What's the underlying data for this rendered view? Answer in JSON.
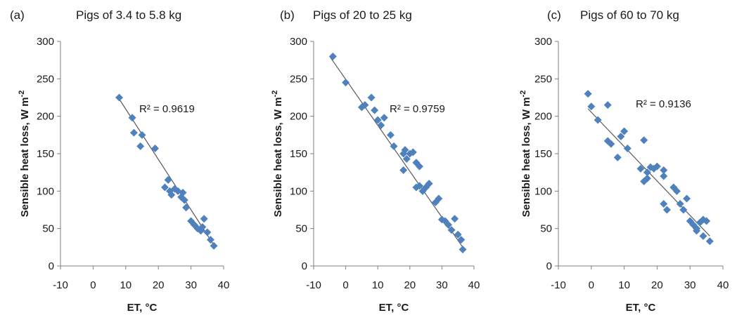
{
  "colors": {
    "marker": "#4f81bd",
    "trendline": "#5a5a5a",
    "axis": "#7f7f7f",
    "text": "#1a1a1a"
  },
  "chart_data": [
    {
      "type": "scatter",
      "panel": "(a)",
      "title": "Pigs of 3.4 to 5.8 kg",
      "xlabel": "ET, °C",
      "ylabel": "Sensible heat loss, W m",
      "ylabel_sup": "-2",
      "xlim": [
        -10,
        40
      ],
      "ylim": [
        0,
        300
      ],
      "xticks": [
        -10,
        0,
        10,
        20,
        30,
        40
      ],
      "yticks": [
        0,
        50,
        100,
        150,
        200,
        250,
        300
      ],
      "r2_label": "R² = 0.9619",
      "trendline": {
        "x": [
          8,
          37
        ],
        "y": [
          223,
          28
        ]
      },
      "points": [
        [
          8,
          225
        ],
        [
          12,
          198
        ],
        [
          12.5,
          178
        ],
        [
          15,
          175
        ],
        [
          14.5,
          160
        ],
        [
          19,
          157
        ],
        [
          22,
          105
        ],
        [
          23,
          115
        ],
        [
          23.5,
          100
        ],
        [
          24,
          95
        ],
        [
          25,
          103
        ],
        [
          26,
          100
        ],
        [
          27,
          92
        ],
        [
          27.5,
          98
        ],
        [
          28,
          88
        ],
        [
          28.5,
          78
        ],
        [
          30,
          60
        ],
        [
          31,
          55
        ],
        [
          32,
          50
        ],
        [
          33,
          47
        ],
        [
          33.5,
          52
        ],
        [
          34,
          63
        ],
        [
          35,
          45
        ],
        [
          36,
          35
        ],
        [
          37,
          27
        ]
      ]
    },
    {
      "type": "scatter",
      "panel": "(b)",
      "title": "Pigs of 20 to 25 kg",
      "xlabel": "ET, °C",
      "ylabel": "Sensible heat loss, W m",
      "ylabel_sup": "-2",
      "xlim": [
        -10,
        40
      ],
      "ylim": [
        0,
        300
      ],
      "xticks": [
        -10,
        0,
        10,
        20,
        30,
        40
      ],
      "yticks": [
        0,
        50,
        100,
        150,
        200,
        250,
        300
      ],
      "r2_label": "R² = 0.9759",
      "trendline": {
        "x": [
          -5,
          37
        ],
        "y": [
          280,
          22
        ]
      },
      "points": [
        [
          -4,
          280
        ],
        [
          0,
          245
        ],
        [
          5,
          212
        ],
        [
          6,
          215
        ],
        [
          8,
          225
        ],
        [
          9,
          208
        ],
        [
          10,
          195
        ],
        [
          12,
          198
        ],
        [
          11,
          188
        ],
        [
          14,
          175
        ],
        [
          15,
          160
        ],
        [
          18,
          150
        ],
        [
          18.5,
          155
        ],
        [
          18,
          128
        ],
        [
          19,
          143
        ],
        [
          20,
          150
        ],
        [
          21,
          152
        ],
        [
          22,
          138
        ],
        [
          22,
          105
        ],
        [
          23,
          133
        ],
        [
          23,
          107
        ],
        [
          24,
          100
        ],
        [
          25,
          105
        ],
        [
          26,
          110
        ],
        [
          28,
          85
        ],
        [
          29,
          90
        ],
        [
          30,
          62
        ],
        [
          31,
          60
        ],
        [
          32,
          55
        ],
        [
          33,
          48
        ],
        [
          34,
          63
        ],
        [
          35,
          42
        ],
        [
          36,
          35
        ],
        [
          36.5,
          22
        ]
      ]
    },
    {
      "type": "scatter",
      "panel": "(c)",
      "title": "Pigs of 60 to 70 kg",
      "xlabel": "ET, °C",
      "ylabel": "Sensible heat loss, W m",
      "ylabel_sup": "-2",
      "xlim": [
        -10,
        40
      ],
      "ylim": [
        0,
        300
      ],
      "xticks": [
        -10,
        0,
        10,
        20,
        30,
        40
      ],
      "yticks": [
        0,
        50,
        100,
        150,
        200,
        250,
        300
      ],
      "r2_label": "R² = 0.9136",
      "trendline": {
        "x": [
          -1,
          36
        ],
        "y": [
          210,
          40
        ]
      },
      "points": [
        [
          -1,
          230
        ],
        [
          0,
          213
        ],
        [
          2,
          195
        ],
        [
          5,
          215
        ],
        [
          5,
          167
        ],
        [
          6,
          163
        ],
        [
          8,
          145
        ],
        [
          9,
          173
        ],
        [
          10,
          180
        ],
        [
          11,
          157
        ],
        [
          15,
          130
        ],
        [
          16,
          168
        ],
        [
          16,
          113
        ],
        [
          17,
          125
        ],
        [
          17,
          117
        ],
        [
          18,
          132
        ],
        [
          19,
          130
        ],
        [
          20,
          133
        ],
        [
          22,
          128
        ],
        [
          22,
          120
        ],
        [
          22,
          83
        ],
        [
          23,
          75
        ],
        [
          25,
          105
        ],
        [
          26,
          100
        ],
        [
          27,
          83
        ],
        [
          28,
          75
        ],
        [
          29,
          90
        ],
        [
          30,
          60
        ],
        [
          31,
          55
        ],
        [
          32,
          50
        ],
        [
          32,
          47
        ],
        [
          33,
          58
        ],
        [
          34,
          62
        ],
        [
          34,
          40
        ],
        [
          35,
          60
        ],
        [
          36,
          33
        ]
      ]
    }
  ]
}
